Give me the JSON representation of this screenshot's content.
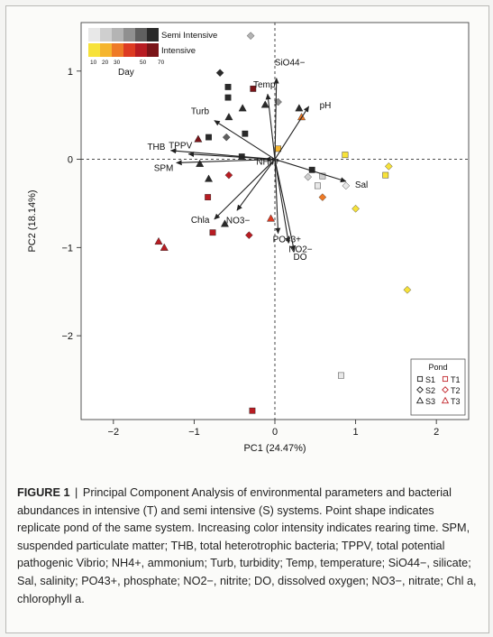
{
  "page": {
    "background": "#fbfbf9"
  },
  "caption": {
    "label": "FIGURE 1",
    "separator": "|",
    "text": "Principal Component Analysis of environmental parameters and bacterial abundances in intensive (T) and semi intensive (S) systems. Point shape indicates replicate pond of the same system. Increasing color intensity indicates rearing time. SPM, suspended particulate matter; THB, total heterotrophic bacteria; TPPV, total potential pathogenic Vibrio; NH4+, ammonium; Turb, turbidity; Temp, temperature; SiO44−, silicate; Sal, salinity; PO43+, phosphate; NO2−, nitrite; DO, dissolved oxygen; NO3−, nitrate; Chl a, chlorophyll a."
  },
  "chart_data": {
    "type": "scatter",
    "xlabel": "PC1 (24.47%)",
    "ylabel": "PC2 (18.14%)",
    "xlim": [
      -2.4,
      2.4
    ],
    "ylim": [
      -2.95,
      1.55
    ],
    "xticks": [
      -2,
      -1,
      0,
      1,
      2
    ],
    "yticks": [
      -2,
      -1,
      0,
      1
    ],
    "xtick_labels": [
      "−2",
      "−1",
      "0",
      "1",
      "2"
    ],
    "ytick_labels": [
      "−2",
      "−1",
      "0",
      "1"
    ],
    "reference_lines": {
      "x": 0,
      "y": 0,
      "style": "dashed"
    },
    "color_scale": {
      "title": "Day",
      "ticks": [
        "10",
        "20",
        "30",
        "50",
        "70"
      ],
      "semi_intensive": {
        "label": "Semi Intensive",
        "colors": [
          "#e8e8e8",
          "#cfcfcf",
          "#b4b4b4",
          "#909090",
          "#606060",
          "#2a2a2a"
        ]
      },
      "intensive": {
        "label": "Intensive",
        "colors": [
          "#f7e23a",
          "#f5b52e",
          "#ee7a26",
          "#dd3b22",
          "#b81c22",
          "#7a1418"
        ]
      }
    },
    "legend": {
      "title": "Pond",
      "position": "bottom-right",
      "entries": [
        {
          "label": "S1",
          "shape": "square",
          "color": "#222222"
        },
        {
          "label": "T1",
          "shape": "square",
          "color": "#c2272d"
        },
        {
          "label": "S2",
          "shape": "diamond",
          "color": "#222222"
        },
        {
          "label": "T2",
          "shape": "diamond",
          "color": "#c2272d"
        },
        {
          "label": "S3",
          "shape": "triangle",
          "color": "#222222"
        },
        {
          "label": "T3",
          "shape": "triangle",
          "color": "#c2272d"
        }
      ]
    },
    "loadings": [
      {
        "label": "SiO44−",
        "x": 0.02,
        "y": 0.92
      },
      {
        "label": "Temp",
        "x": -0.09,
        "y": 0.74
      },
      {
        "label": "pH",
        "x": 0.42,
        "y": 0.6
      },
      {
        "label": "Turb",
        "x": -0.75,
        "y": 0.44
      },
      {
        "label": "THB",
        "x": -1.29,
        "y": 0.1
      },
      {
        "label": "TPPV",
        "x": -1.07,
        "y": 0.06
      },
      {
        "label": "SPM",
        "x": -1.22,
        "y": -0.04
      },
      {
        "label": "NH4+",
        "x": -0.12,
        "y": 0.0
      },
      {
        "label": "Sal",
        "x": 0.88,
        "y": -0.25
      },
      {
        "label": "Chla",
        "x": -0.75,
        "y": -0.68
      },
      {
        "label": "NO3−",
        "x": -0.47,
        "y": -0.58
      },
      {
        "label": "PO43+",
        "x": 0.04,
        "y": -0.84
      },
      {
        "label": "NO2−",
        "x": 0.17,
        "y": -0.95
      },
      {
        "label": "DO",
        "x": 0.24,
        "y": -1.04
      }
    ],
    "points": [
      {
        "x": -0.3,
        "y": 1.4,
        "shape": "diamond",
        "color": "#b4b4b4"
      },
      {
        "x": -0.68,
        "y": 0.98,
        "shape": "diamond",
        "color": "#2a2a2a"
      },
      {
        "x": -0.58,
        "y": 0.82,
        "shape": "square",
        "color": "#2a2a2a"
      },
      {
        "x": -0.58,
        "y": 0.7,
        "shape": "square",
        "color": "#2a2a2a"
      },
      {
        "x": -0.27,
        "y": 0.8,
        "shape": "square",
        "color": "#7a1418"
      },
      {
        "x": -0.4,
        "y": 0.58,
        "shape": "triangle",
        "color": "#2a2a2a"
      },
      {
        "x": -0.12,
        "y": 0.62,
        "shape": "triangle",
        "color": "#2a2a2a"
      },
      {
        "x": -0.57,
        "y": 0.48,
        "shape": "triangle",
        "color": "#2a2a2a"
      },
      {
        "x": -0.37,
        "y": 0.29,
        "shape": "square",
        "color": "#2a2a2a"
      },
      {
        "x": -0.6,
        "y": 0.25,
        "shape": "diamond",
        "color": "#606060"
      },
      {
        "x": -0.82,
        "y": 0.25,
        "shape": "square",
        "color": "#2a2a2a"
      },
      {
        "x": -0.95,
        "y": 0.23,
        "shape": "triangle",
        "color": "#7a1418"
      },
      {
        "x": -0.41,
        "y": 0.03,
        "shape": "square",
        "color": "#2a2a2a"
      },
      {
        "x": -0.93,
        "y": -0.05,
        "shape": "triangle",
        "color": "#2a2a2a"
      },
      {
        "x": -0.82,
        "y": -0.22,
        "shape": "triangle",
        "color": "#2a2a2a"
      },
      {
        "x": -0.57,
        "y": -0.18,
        "shape": "diamond",
        "color": "#b81c22"
      },
      {
        "x": -0.83,
        "y": -0.43,
        "shape": "square",
        "color": "#b81c22"
      },
      {
        "x": -0.77,
        "y": -0.83,
        "shape": "square",
        "color": "#b81c22"
      },
      {
        "x": -0.62,
        "y": -0.73,
        "shape": "triangle",
        "color": "#2a2a2a"
      },
      {
        "x": -0.32,
        "y": -0.86,
        "shape": "diamond",
        "color": "#b81c22"
      },
      {
        "x": -0.05,
        "y": -0.67,
        "shape": "triangle",
        "color": "#dd3b22"
      },
      {
        "x": -1.44,
        "y": -0.93,
        "shape": "triangle",
        "color": "#b81c22"
      },
      {
        "x": -1.37,
        "y": -1.0,
        "shape": "triangle",
        "color": "#b81c22"
      },
      {
        "x": 0.04,
        "y": 0.65,
        "shape": "diamond",
        "color": "#909090"
      },
      {
        "x": 0.3,
        "y": 0.58,
        "shape": "triangle",
        "color": "#2a2a2a"
      },
      {
        "x": 0.33,
        "y": 0.48,
        "shape": "triangle",
        "color": "#ee7a26"
      },
      {
        "x": 0.04,
        "y": 0.12,
        "shape": "square",
        "color": "#f5b52e"
      },
      {
        "x": 0.46,
        "y": -0.12,
        "shape": "square",
        "color": "#2a2a2a"
      },
      {
        "x": 0.41,
        "y": -0.2,
        "shape": "diamond",
        "color": "#cfcfcf"
      },
      {
        "x": 0.59,
        "y": -0.19,
        "shape": "square",
        "color": "#cfcfcf"
      },
      {
        "x": 0.53,
        "y": -0.3,
        "shape": "square",
        "color": "#e8e8e8"
      },
      {
        "x": 0.59,
        "y": -0.43,
        "shape": "diamond",
        "color": "#ee7a26"
      },
      {
        "x": 0.87,
        "y": 0.05,
        "shape": "square",
        "color": "#f7e23a"
      },
      {
        "x": 0.88,
        "y": -0.3,
        "shape": "diamond",
        "color": "#e8e8e8"
      },
      {
        "x": 1.41,
        "y": -0.08,
        "shape": "diamond",
        "color": "#f7e23a"
      },
      {
        "x": 1.37,
        "y": -0.18,
        "shape": "square",
        "color": "#f7e23a"
      },
      {
        "x": 1.0,
        "y": -0.56,
        "shape": "diamond",
        "color": "#f7e23a"
      },
      {
        "x": 1.64,
        "y": -1.48,
        "shape": "diamond",
        "color": "#f7e23a"
      },
      {
        "x": 0.82,
        "y": -2.45,
        "shape": "square",
        "color": "#e8e8e8"
      },
      {
        "x": -0.28,
        "y": -2.85,
        "shape": "square",
        "color": "#b81c22"
      }
    ]
  }
}
